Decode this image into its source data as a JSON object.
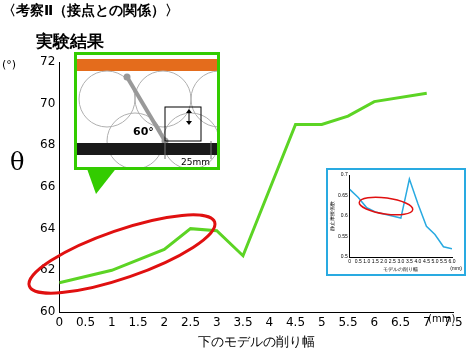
{
  "title": "〈考察Ⅱ（接点との関係）〉",
  "subtitle": "実験結果",
  "chart_data": [
    {
      "type": "line",
      "xlabel": "下のモデルの削り幅",
      "ylabel": "θ",
      "annotations": [
        "(°)",
        "(mm)"
      ],
      "x": [
        0,
        1,
        2,
        2.5,
        3,
        3.5,
        4.5,
        5,
        5.5,
        6,
        7
      ],
      "values": [
        61.4,
        62.0,
        63.0,
        64.0,
        63.9,
        62.7,
        69.0,
        69.0,
        69.4,
        70.1,
        70.5
      ],
      "color": "#5cd424",
      "marker": "none",
      "line_style": "solid",
      "xlim": [
        0,
        7.5
      ],
      "xticks": [
        0,
        0.5,
        1,
        1.5,
        2,
        2.5,
        3,
        3.5,
        4,
        4.5,
        5,
        5.5,
        6,
        6.5,
        7,
        7.5
      ],
      "ylim": [
        60,
        72
      ],
      "yticks": [
        60,
        62,
        64,
        66,
        68,
        70,
        72
      ],
      "grid": false
    },
    {
      "type": "line",
      "xlabel": "モデルの削り幅",
      "ylabel": "静止摩擦係数",
      "annotations": [
        "(mm)"
      ],
      "x": [
        0,
        0.5,
        1,
        1.5,
        2,
        2.5,
        3,
        3.5,
        4,
        4.5,
        5,
        5.5,
        6
      ],
      "values": [
        0.665,
        0.645,
        0.62,
        0.61,
        0.605,
        0.6,
        0.595,
        0.69,
        0.63,
        0.575,
        0.555,
        0.525,
        0.52
      ],
      "color": "#29aae1",
      "marker": "none",
      "line_style": "solid",
      "xlim": [
        0,
        6
      ],
      "xticks": [
        0,
        0.5,
        {
          "value": 1,
          "label": "1.0"
        },
        1.5,
        {
          "value": 2,
          "label": "2.0"
        },
        2.5,
        {
          "value": 3,
          "label": "3.0"
        },
        3.5,
        {
          "value": 4,
          "label": "4.0"
        },
        4.5,
        {
          "value": 5,
          "label": "5.0"
        },
        5.5,
        {
          "value": 6,
          "label": "6.0"
        }
      ],
      "ylim": [
        0.5,
        0.7
      ],
      "yticks": [
        0.5,
        0.55,
        0.6,
        0.65,
        0.7
      ],
      "grid": false
    }
  ],
  "diagram": {
    "annotations": [
      "60°",
      "25mm"
    ]
  }
}
